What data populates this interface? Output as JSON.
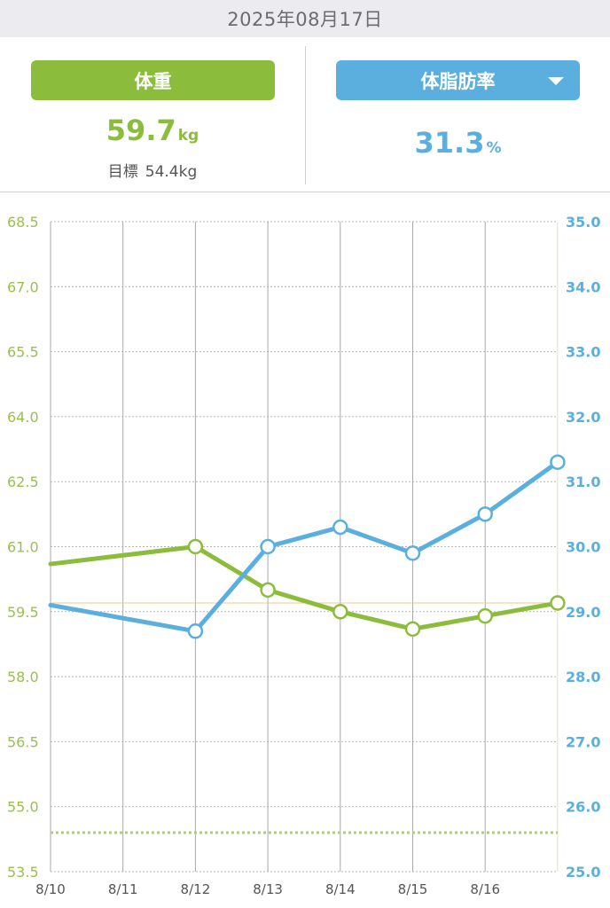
{
  "date_label": "2025年08月17日",
  "weight_panel": {
    "button_label": "体重",
    "value": "59.7",
    "unit": "kg",
    "goal_label": "目標",
    "goal_value": "54.4kg"
  },
  "fat_panel": {
    "button_label": "体脂肪率",
    "value": "31.3",
    "unit": "%"
  },
  "chart_data": {
    "type": "line",
    "categories": [
      "8/10",
      "8/11",
      "8/12",
      "8/13",
      "8/14",
      "8/15",
      "8/16",
      ""
    ],
    "y_left": {
      "ylim": [
        53.5,
        68.5
      ],
      "ticks": [
        "53.5",
        "55.0",
        "56.5",
        "58.0",
        "59.5",
        "61.0",
        "62.5",
        "64.0",
        "65.5",
        "67.0",
        "68.5"
      ]
    },
    "y_right": {
      "ylim": [
        25.0,
        35.0
      ],
      "ticks": [
        "25.0",
        "26.0",
        "27.0",
        "28.0",
        "29.0",
        "30.0",
        "31.0",
        "32.0",
        "33.0",
        "34.0",
        "35.0"
      ]
    },
    "series": [
      {
        "axis": "left",
        "color": "#8cbc3c",
        "points": [
          {
            "x": 0,
            "y": 60.6
          },
          {
            "x": 2,
            "y": 61.0,
            "marker": true
          },
          {
            "x": 3,
            "y": 60.0,
            "marker": true
          },
          {
            "x": 4,
            "y": 59.5,
            "marker": true
          },
          {
            "x": 5,
            "y": 59.1,
            "marker": true
          },
          {
            "x": 6,
            "y": 59.4,
            "marker": true
          },
          {
            "x": 7,
            "y": 59.7,
            "marker": true
          }
        ]
      },
      {
        "axis": "right",
        "color": "#5aafdf",
        "points": [
          {
            "x": 0,
            "y": 29.1
          },
          {
            "x": 2,
            "y": 28.7,
            "marker": true
          },
          {
            "x": 3,
            "y": 30.0,
            "marker": true
          },
          {
            "x": 4,
            "y": 30.3,
            "marker": true
          },
          {
            "x": 5,
            "y": 29.9,
            "marker": true
          },
          {
            "x": 6,
            "y": 30.5,
            "marker": true
          },
          {
            "x": 7,
            "y": 31.3,
            "marker": true
          }
        ]
      }
    ],
    "reference_lines": [
      {
        "axis": "left",
        "value": 59.7,
        "color": "#f5c98a",
        "style": "solid"
      },
      {
        "axis": "left",
        "value": 54.4,
        "color": "#a6d46a",
        "style": "dotted"
      }
    ],
    "grid": true
  }
}
